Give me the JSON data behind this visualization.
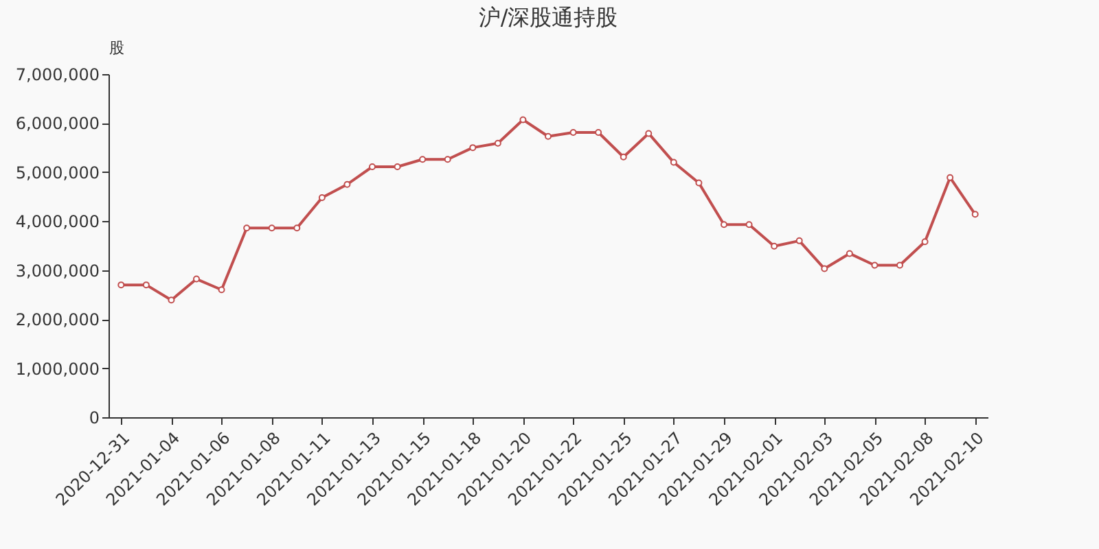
{
  "chart_data": {
    "type": "line",
    "title": "沪/深股通持股",
    "ylabel": "股",
    "categories": [
      "2020-12-31",
      null,
      "2021-01-04",
      null,
      "2021-01-06",
      null,
      "2021-01-08",
      null,
      "2021-01-11",
      null,
      "2021-01-13",
      null,
      "2021-01-15",
      null,
      "2021-01-18",
      null,
      "2021-01-20",
      null,
      "2021-01-22",
      null,
      "2021-01-25",
      null,
      "2021-01-27",
      null,
      "2021-01-29",
      null,
      "2021-02-01",
      null,
      "2021-02-03",
      null,
      "2021-02-05",
      null,
      "2021-02-08",
      null,
      "2021-02-10"
    ],
    "series": [
      {
        "color": "#c14f4f",
        "values": [
          2700000,
          2700000,
          2390000,
          2820000,
          2600000,
          3860000,
          3860000,
          3860000,
          4480000,
          4750000,
          5110000,
          5110000,
          5260000,
          5260000,
          5500000,
          5590000,
          6070000,
          5730000,
          5810000,
          5810000,
          5310000,
          5790000,
          5200000,
          4780000,
          3930000,
          3930000,
          3490000,
          3600000,
          3030000,
          3340000,
          3100000,
          3100000,
          3580000,
          4890000,
          4140000
        ]
      }
    ],
    "ylim": [
      0,
      7000000
    ],
    "yticks": [
      0,
      {
        "value": 1000000,
        "label": "1,000,000"
      },
      {
        "value": 2000000,
        "label": "2,000,000"
      },
      {
        "value": 3000000,
        "label": "3,000,000"
      },
      {
        "value": 4000000,
        "label": "4,000,000"
      },
      {
        "value": 5000000,
        "label": "5,000,000"
      },
      {
        "value": 6000000,
        "label": "6,000,000"
      },
      {
        "value": 7000000,
        "label": "7,000,000"
      }
    ],
    "grid": false,
    "marker": "circle",
    "line_style": "solid"
  }
}
